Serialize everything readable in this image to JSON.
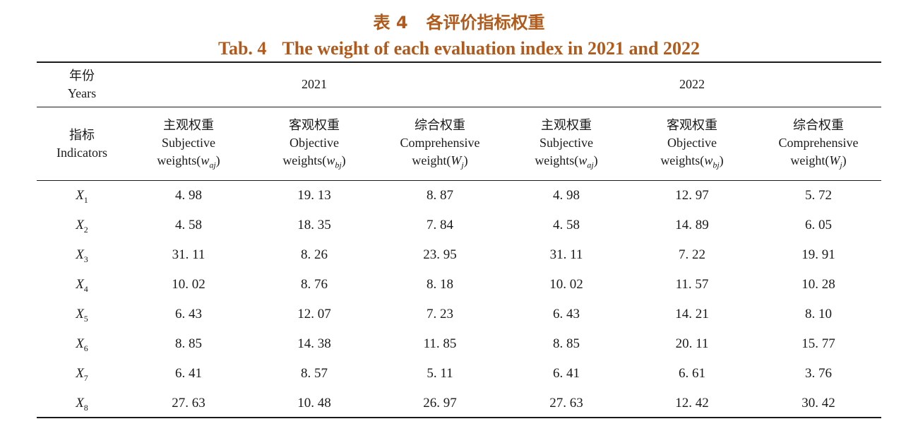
{
  "title": {
    "cn_label": "表 4",
    "cn_text": "各评价指标权重",
    "en_label": "Tab. 4",
    "en_text": "The weight of each evaluation index in 2021 and 2022"
  },
  "header": {
    "year_cn": "年份",
    "year_en": "Years",
    "indicator_cn": "指标",
    "indicator_en": "Indicators",
    "years": [
      "2021",
      "2022"
    ],
    "columns": [
      {
        "cn": "主观权重",
        "en": "Subjective",
        "en2": "weights(",
        "sym": "w",
        "sub": "aj",
        "close": ")"
      },
      {
        "cn": "客观权重",
        "en": "Objective",
        "en2": "weights(",
        "sym": "w",
        "sub": "bj",
        "close": ")"
      },
      {
        "cn": "综合权重",
        "en": "Comprehensive",
        "en2": "weight(",
        "sym": "W",
        "sub": "j",
        "close": ")"
      },
      {
        "cn": "主观权重",
        "en": "Subjective",
        "en2": "weights(",
        "sym": "w",
        "sub": "aj",
        "close": ")"
      },
      {
        "cn": "客观权重",
        "en": "Objective",
        "en2": "weights(",
        "sym": "w",
        "sub": "bj",
        "close": ")"
      },
      {
        "cn": "综合权重",
        "en": "Comprehensive",
        "en2": "weight(",
        "sym": "W",
        "sub": "j",
        "close": ")"
      }
    ]
  },
  "rows": [
    {
      "sym": "X",
      "sub": "1",
      "values": [
        "4. 98",
        "19. 13",
        "8. 87",
        "4. 98",
        "12. 97",
        "5. 72"
      ]
    },
    {
      "sym": "X",
      "sub": "2",
      "values": [
        "4. 58",
        "18. 35",
        "7. 84",
        "4. 58",
        "14. 89",
        "6. 05"
      ]
    },
    {
      "sym": "X",
      "sub": "3",
      "values": [
        "31. 11",
        "8. 26",
        "23. 95",
        "31. 11",
        "7. 22",
        "19. 91"
      ]
    },
    {
      "sym": "X",
      "sub": "4",
      "values": [
        "10. 02",
        "8. 76",
        "8. 18",
        "10. 02",
        "11. 57",
        "10. 28"
      ]
    },
    {
      "sym": "X",
      "sub": "5",
      "values": [
        "6. 43",
        "12. 07",
        "7. 23",
        "6. 43",
        "14. 21",
        "8. 10"
      ]
    },
    {
      "sym": "X",
      "sub": "6",
      "values": [
        "8. 85",
        "14. 38",
        "11. 85",
        "8. 85",
        "20. 11",
        "15. 77"
      ]
    },
    {
      "sym": "X",
      "sub": "7",
      "values": [
        "6. 41",
        "8. 57",
        "5. 11",
        "6. 41",
        "6. 61",
        "3. 76"
      ]
    },
    {
      "sym": "X",
      "sub": "8",
      "values": [
        "27. 63",
        "10. 48",
        "26. 97",
        "27. 63",
        "12. 42",
        "30. 42"
      ]
    }
  ]
}
